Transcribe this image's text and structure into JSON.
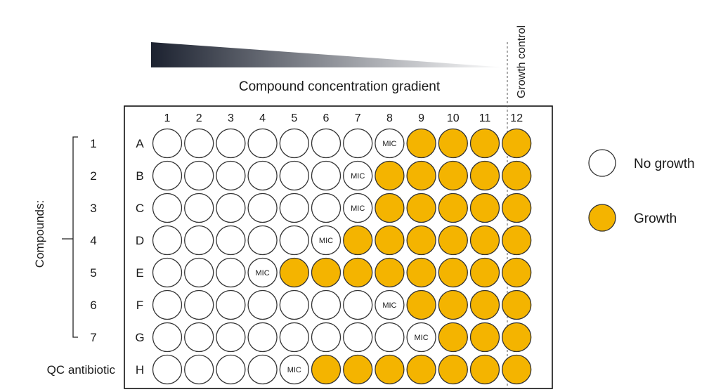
{
  "gradient": {
    "label": "Compound concentration gradient",
    "color_dark": "#1c2230",
    "color_light": "#ffffff"
  },
  "growth_control_label": "Growth control",
  "columns": [
    "1",
    "2",
    "3",
    "4",
    "5",
    "6",
    "7",
    "8",
    "9",
    "10",
    "11",
    "12"
  ],
  "rows": [
    "A",
    "B",
    "C",
    "D",
    "E",
    "F",
    "G",
    "H"
  ],
  "compound_group_label": "Compounds:",
  "row_labels": [
    "1",
    "2",
    "3",
    "4",
    "5",
    "6",
    "7",
    "QC antibiotic"
  ],
  "mic_label": "MIC",
  "mic_column": [
    8,
    7,
    7,
    6,
    4,
    8,
    9,
    5
  ],
  "colors": {
    "growth": "#f4b400",
    "no_growth": "#ffffff",
    "well_stroke": "#333333",
    "plate_border": "#111111"
  },
  "legend": [
    {
      "icon": "empty-well-icon",
      "label": "No growth",
      "state": "no_growth"
    },
    {
      "icon": "filled-well-icon",
      "label": "Growth",
      "state": "growth"
    }
  ]
}
